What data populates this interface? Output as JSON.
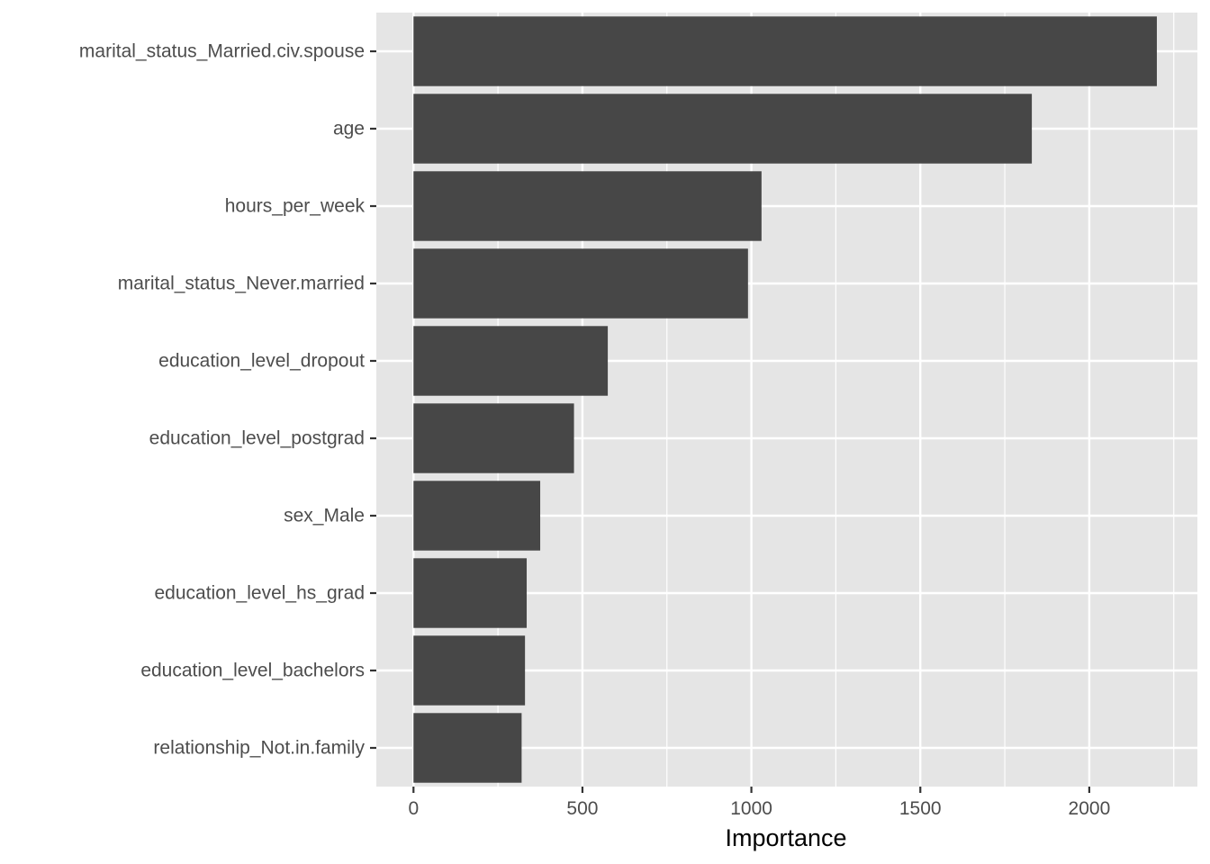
{
  "chart_data": {
    "type": "bar",
    "orientation": "horizontal",
    "title": "",
    "xlabel": "Importance",
    "ylabel": "",
    "xlim": [
      -110,
      2320
    ],
    "x_ticks": [
      0,
      500,
      1000,
      1500,
      2000
    ],
    "x_minor_ticks": [
      250,
      750,
      1250,
      1750,
      2250
    ],
    "categories": [
      "marital_status_Married.civ.spouse",
      "age",
      "hours_per_week",
      "marital_status_Never.married",
      "education_level_dropout",
      "education_level_postgrad",
      "sex_Male",
      "education_level_hs_grad",
      "education_level_bachelors",
      "relationship_Not.in.family"
    ],
    "values": [
      2200,
      1830,
      1030,
      990,
      575,
      475,
      375,
      335,
      330,
      320
    ],
    "grid": true,
    "legend": "none",
    "colors": {
      "panel_background": "#e5e5e5",
      "grid_line": "#ffffff",
      "bar_fill": "#474747",
      "tick_label": "#4d4d4d",
      "tick_mark": "#333333",
      "axis_title": "#000000"
    }
  }
}
